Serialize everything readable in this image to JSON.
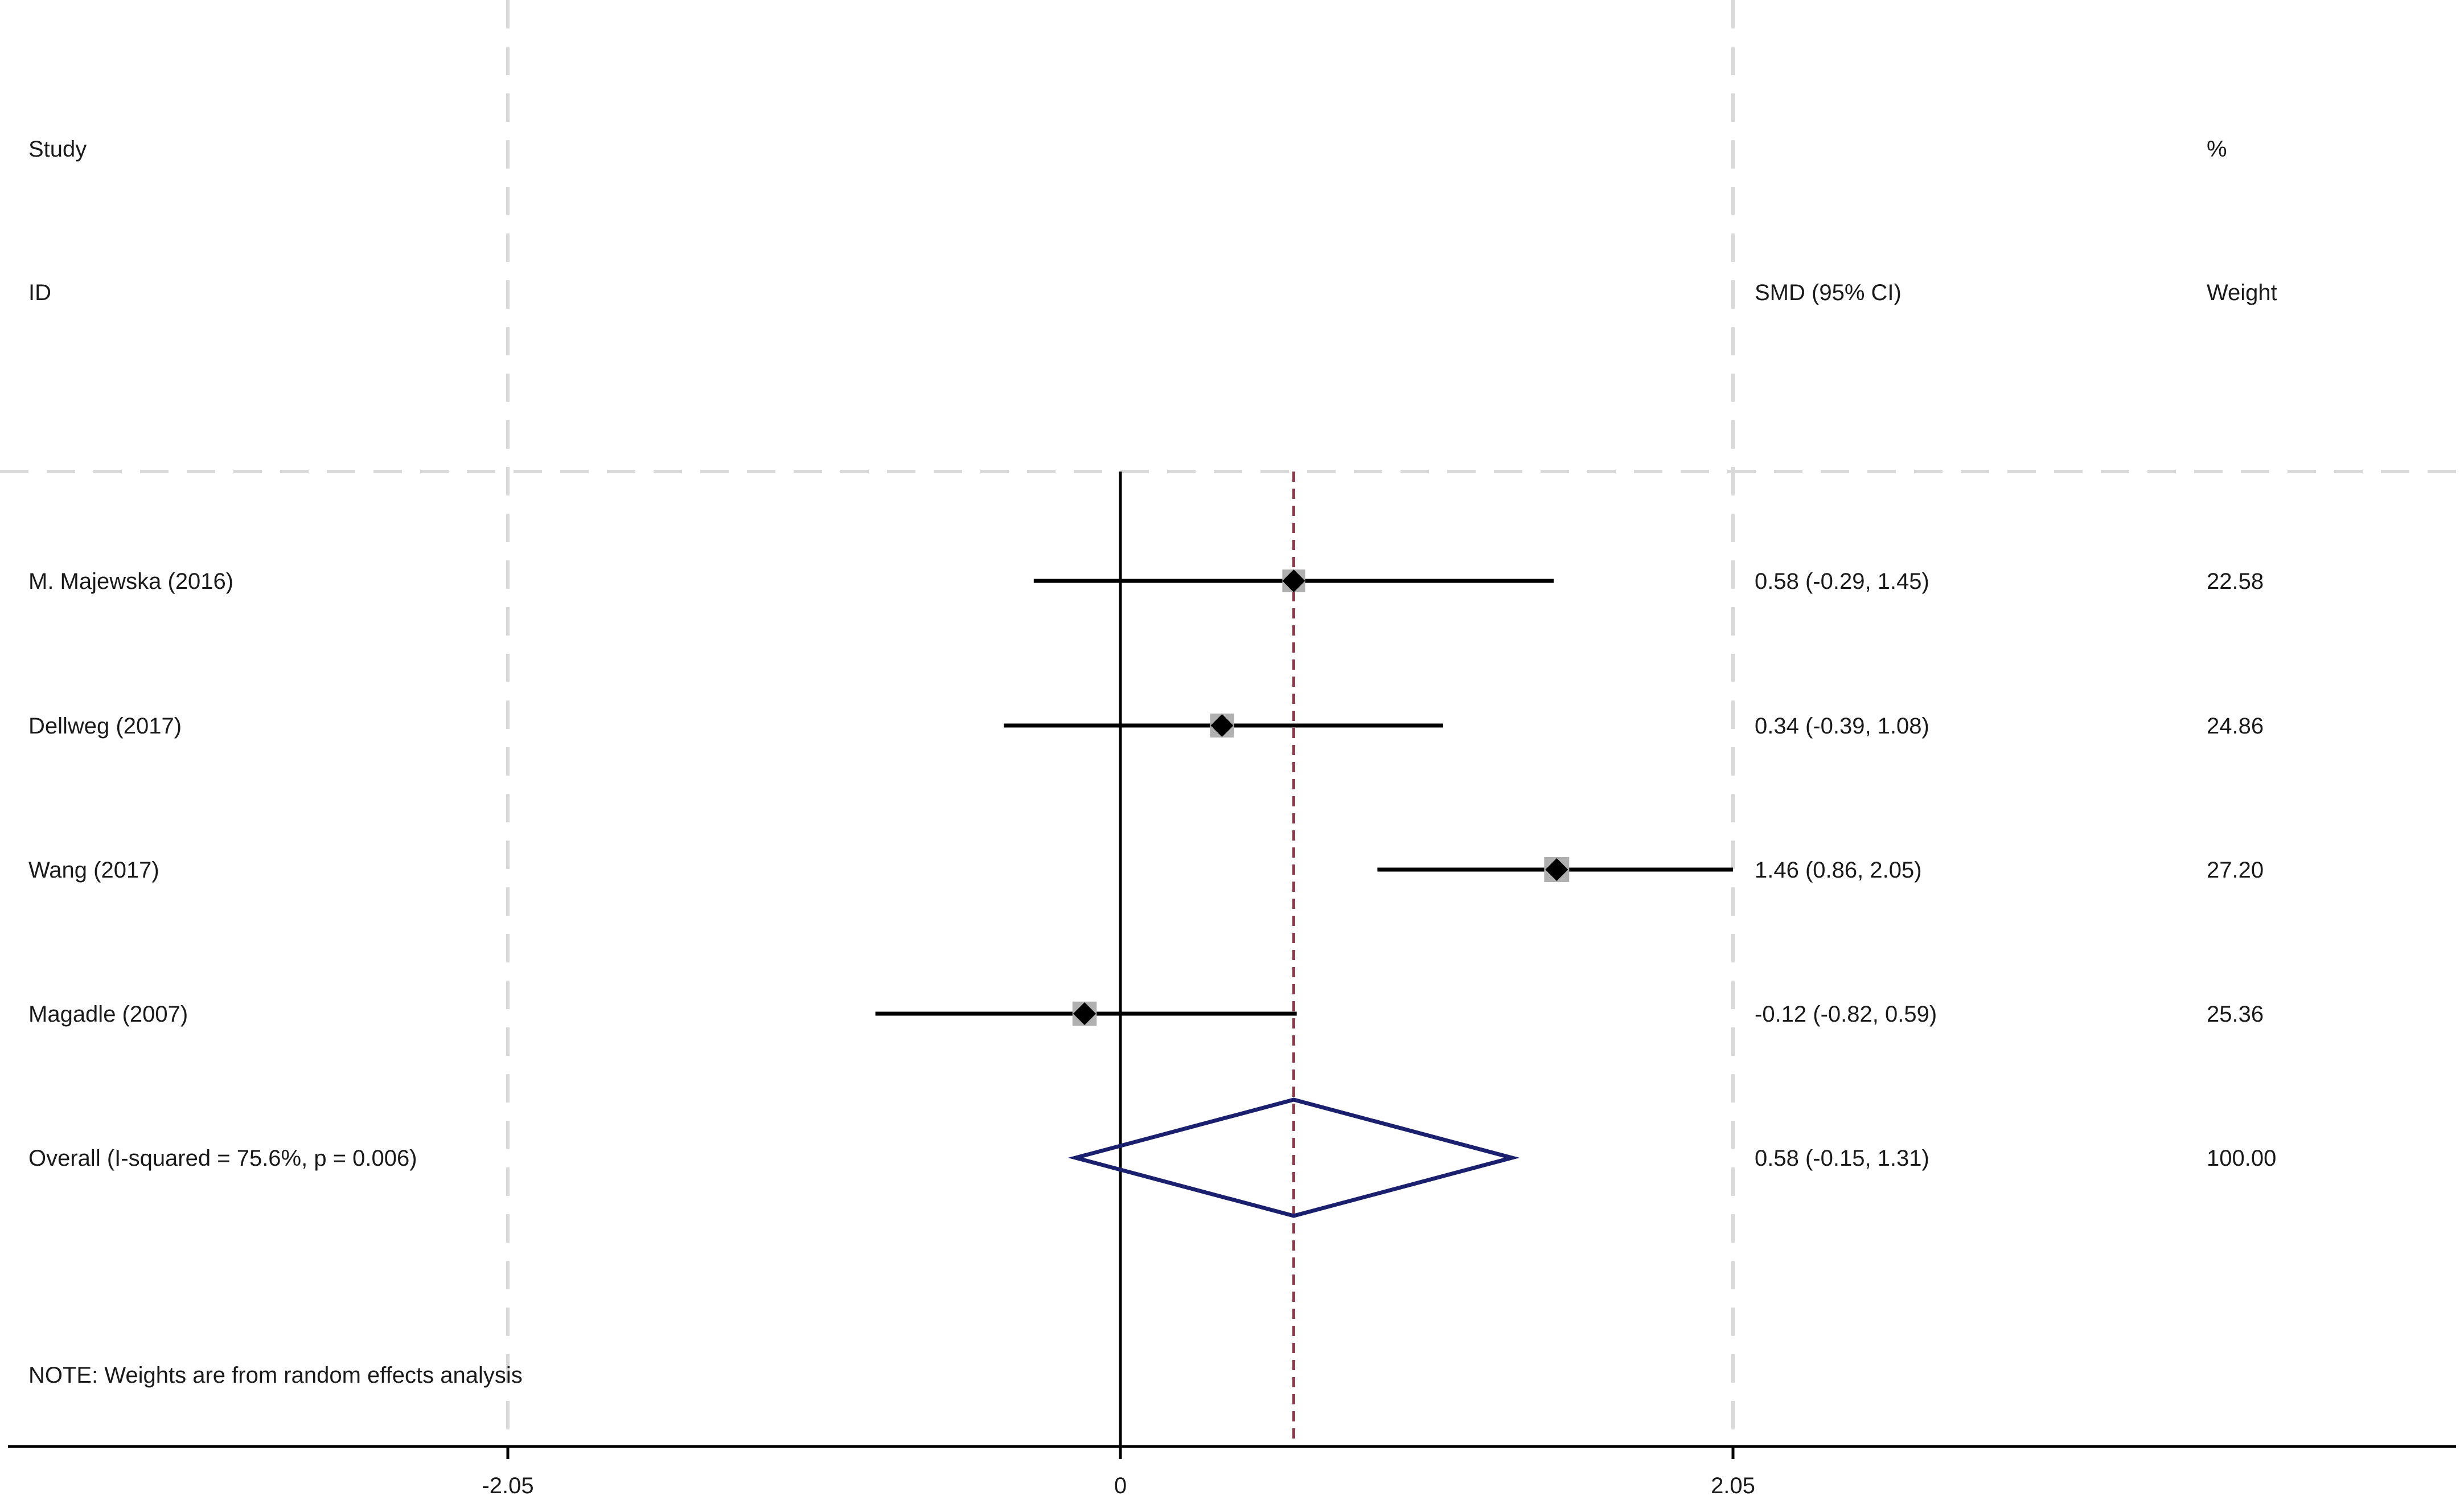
{
  "chart_data": {
    "type": "forest",
    "header": {
      "study_label": "Study",
      "id_label": "ID",
      "estimate_label": "SMD (95% CI)",
      "pct_label": "%",
      "weight_label": "Weight"
    },
    "studies": [
      {
        "name": "M. Majewska (2016)",
        "smd": 0.58,
        "lower": -0.29,
        "upper": 1.45,
        "ci_text": "0.58 (-0.29, 1.45)",
        "weight_text": "22.58",
        "weight": 22.58
      },
      {
        "name": "Dellweg (2017)",
        "smd": 0.34,
        "lower": -0.39,
        "upper": 1.08,
        "ci_text": "0.34 (-0.39, 1.08)",
        "weight_text": "24.86",
        "weight": 24.86
      },
      {
        "name": "Wang (2017)",
        "smd": 1.46,
        "lower": 0.86,
        "upper": 2.05,
        "ci_text": "1.46 (0.86, 2.05)",
        "weight_text": "27.20",
        "weight": 27.2
      },
      {
        "name": "Magadle (2007)",
        "smd": -0.12,
        "lower": -0.82,
        "upper": 0.59,
        "ci_text": "-0.12 (-0.82, 0.59)",
        "weight_text": "25.36",
        "weight": 25.36
      }
    ],
    "overall": {
      "label": "Overall  (I-squared = 75.6%, p = 0.006)",
      "smd": 0.58,
      "lower": -0.15,
      "upper": 1.31,
      "ci_text": "0.58 (-0.15, 1.31)",
      "weight_text": "100.00"
    },
    "note": "NOTE: Weights are from random effects analysis",
    "x_ticks": [
      -2.05,
      0,
      2.05
    ],
    "x_tick_labels": [
      "-2.05",
      "0",
      "2.05"
    ],
    "xlim": [
      -4.1,
      4.1
    ],
    "colors": {
      "ci_line": "#000000",
      "marker": "#000000",
      "weight_box": "#b0b0b0",
      "overall_diamond": "#1a1f6e",
      "overall_line": "#8b3a4a",
      "grid": "#d9d9d9"
    }
  }
}
